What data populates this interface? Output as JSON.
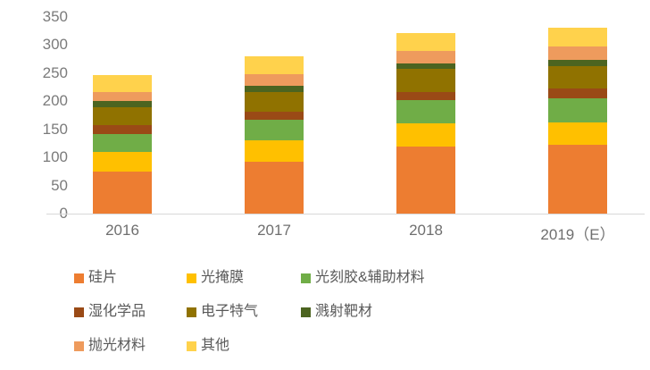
{
  "chart_data": {
    "type": "bar",
    "stacked": true,
    "title": "",
    "xlabel": "",
    "ylabel": "",
    "grid": false,
    "legend_position": "bottom",
    "categories": [
      "2016",
      "2017",
      "2018",
      "2019（E）"
    ],
    "y_axis": {
      "min": 0,
      "max": 350,
      "step": 50,
      "ticks": [
        0,
        50,
        100,
        150,
        200,
        250,
        300,
        350
      ]
    },
    "series": [
      {
        "name": "硅片",
        "color": "#ED7D31",
        "values": [
          75,
          93,
          120,
          122
        ]
      },
      {
        "name": "光掩膜",
        "color": "#FFC000",
        "values": [
          35,
          37,
          41,
          41
        ]
      },
      {
        "name": "光刻胶&辅助材料",
        "color": "#70AD47",
        "values": [
          31,
          37,
          41,
          43
        ]
      },
      {
        "name": "湿化学品",
        "color": "#9A4A16",
        "values": [
          16,
          14,
          15,
          16
        ]
      },
      {
        "name": "电子特气",
        "color": "#907200",
        "values": [
          32,
          36,
          41,
          40
        ]
      },
      {
        "name": "溅射靶材",
        "color": "#4C6420",
        "values": [
          12,
          11,
          10,
          11
        ]
      },
      {
        "name": "抛光材料",
        "color": "#EE9B5D",
        "values": [
          15,
          20,
          22,
          25
        ]
      },
      {
        "name": "其他",
        "color": "#FFD24C",
        "values": [
          30,
          32,
          32,
          33
        ]
      }
    ],
    "totals": [
      246,
      280,
      322,
      331
    ]
  }
}
